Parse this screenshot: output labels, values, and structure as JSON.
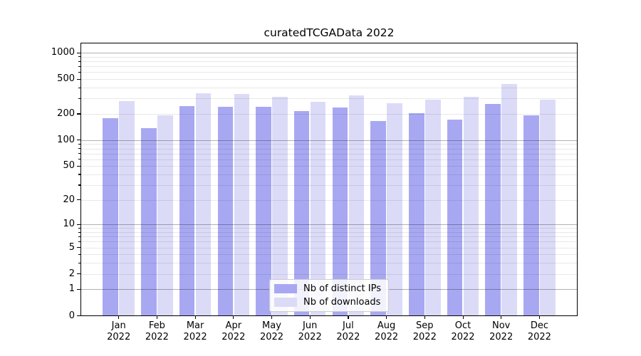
{
  "title": "curatedTCGAData 2022",
  "chart_data": {
    "type": "bar",
    "title": "curatedTCGAData 2022",
    "categories": [
      "Jan",
      "Feb",
      "Mar",
      "Apr",
      "May",
      "Jun",
      "Jul",
      "Aug",
      "Sep",
      "Oct",
      "Nov",
      "Dec"
    ],
    "year_label": "2022",
    "series": [
      {
        "name": "Nb of distinct IPs",
        "color": "#a8a8f2",
        "values": [
          179,
          138,
          247,
          239,
          239,
          216,
          238,
          166,
          205,
          172,
          258,
          193
        ]
      },
      {
        "name": "Nb of downloads",
        "color": "#dbdbf8",
        "values": [
          279,
          193,
          344,
          338,
          311,
          277,
          328,
          265,
          290,
          312,
          440,
          291
        ]
      }
    ],
    "yscale": "log1p",
    "yticks": [
      0,
      1,
      2,
      5,
      10,
      20,
      50,
      100,
      200,
      500,
      1000
    ],
    "ylim": [
      0,
      1300
    ],
    "grid": true,
    "legend_position": "lower center",
    "colors": {
      "major_grid": "#b3b3b3",
      "minor_grid": "#e8e8e8",
      "spine": "#000000",
      "text": "#000000",
      "legend_border": "#cccccc"
    }
  }
}
